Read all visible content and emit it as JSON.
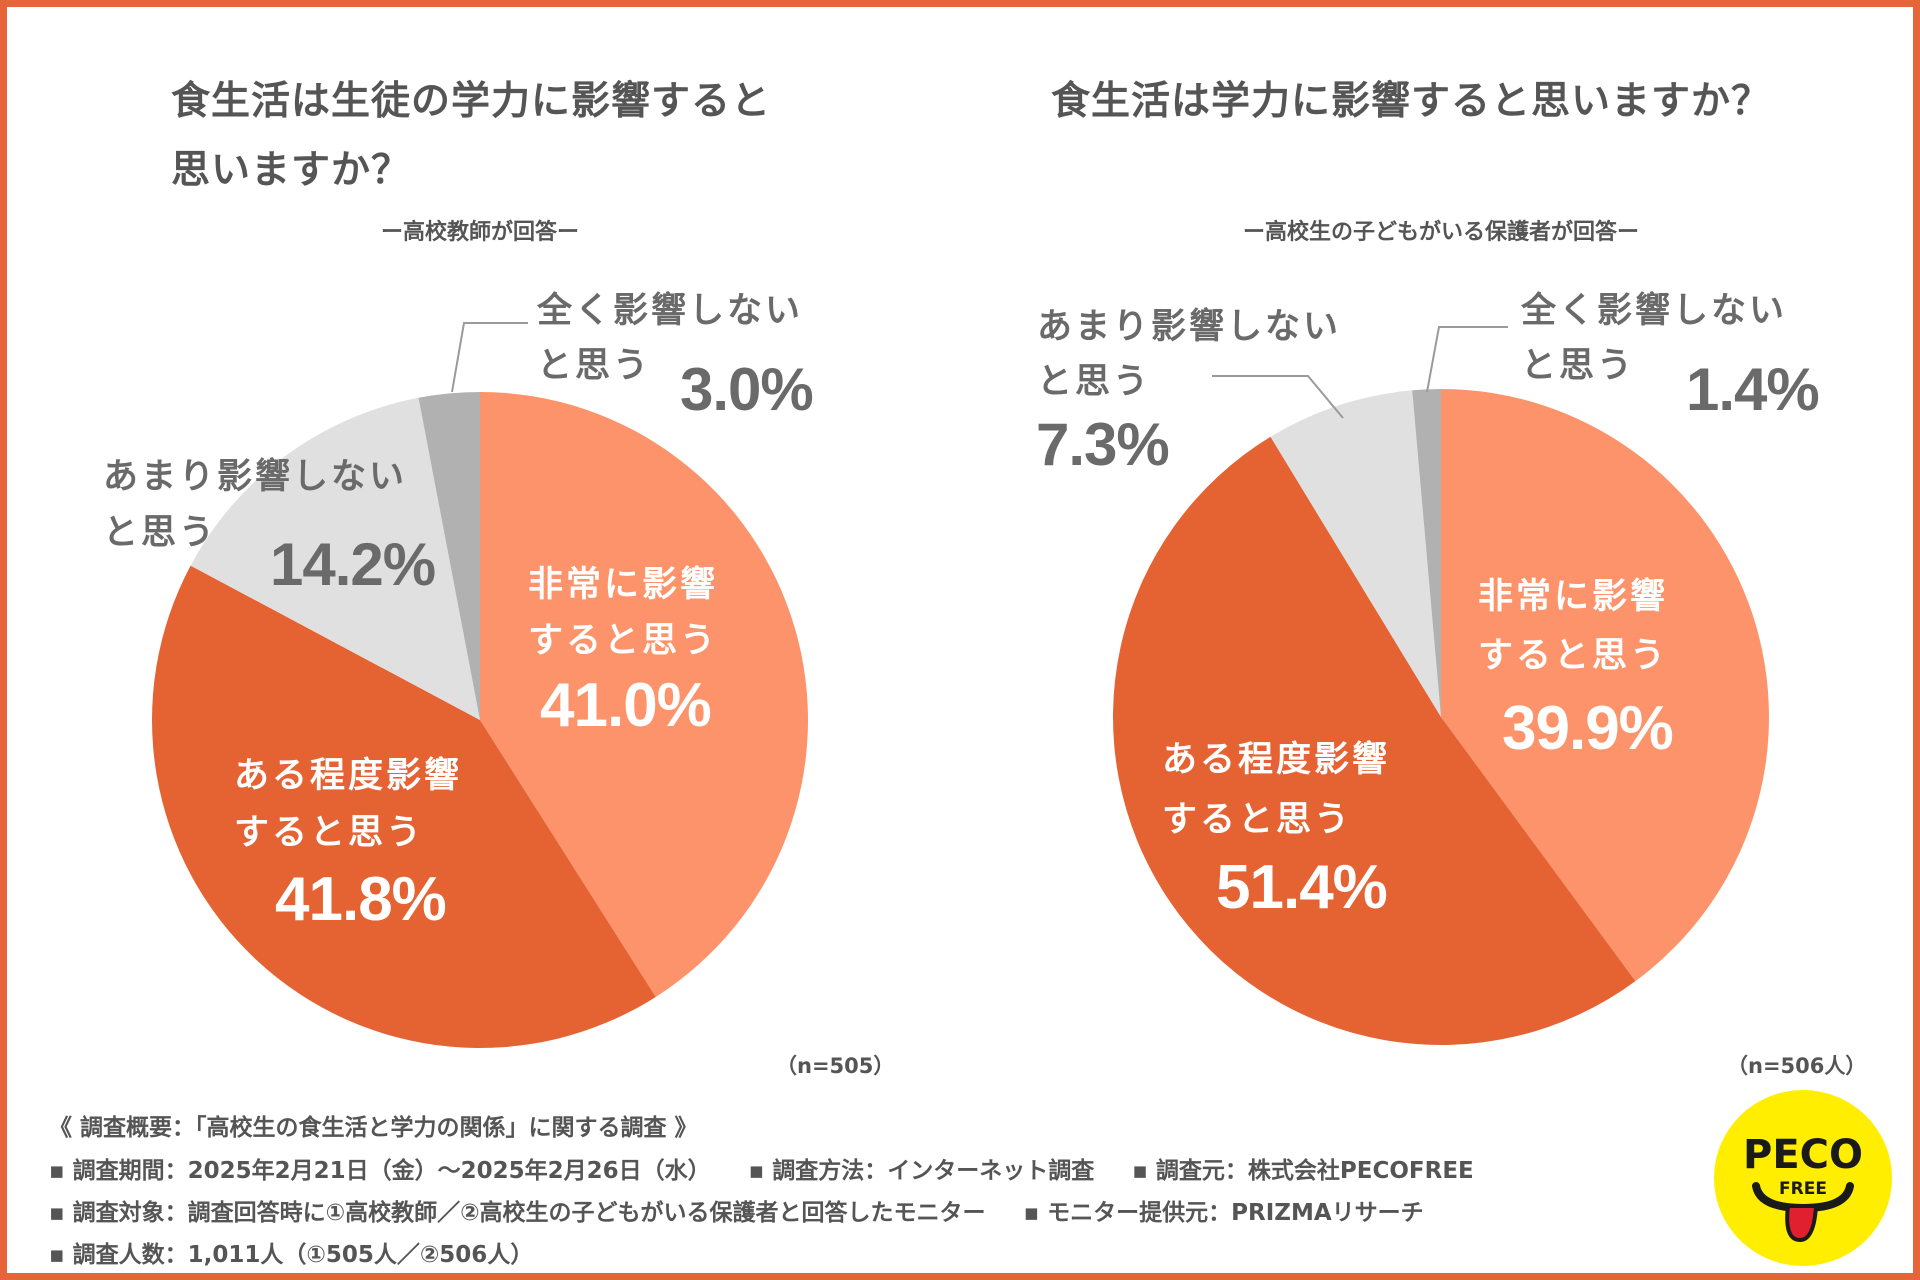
{
  "colors": {
    "border": "#E5643A",
    "very_much": "#FD936A",
    "somewhat": "#E56333",
    "not_much": "#E0E0E0",
    "not_at_all": "#B1B1B1",
    "leader": "#9a9a9a",
    "logo_bg": "#FFEE00"
  },
  "chart_data": [
    {
      "type": "pie",
      "title": "食生活は生徒の学力に影響すると思いますか？",
      "title_lines": [
        "食生活は生徒の学力に影響すると",
        "思いますか？"
      ],
      "subtitle": "ー高校教師が回答ー",
      "sample_note": "（n=505）",
      "start_angle_deg": 0,
      "direction": "clockwise",
      "slices": [
        {
          "key": "very_much",
          "label_lines": [
            "非常に影響",
            "すると思う"
          ],
          "value": 41.0,
          "display": "41.0%"
        },
        {
          "key": "somewhat",
          "label_lines": [
            "ある程度影響",
            "すると思う"
          ],
          "value": 41.8,
          "display": "41.8%"
        },
        {
          "key": "not_much",
          "label_lines": [
            "あまり影響しない",
            "と思う"
          ],
          "value": 14.2,
          "display": "14.2%"
        },
        {
          "key": "not_at_all",
          "label_lines": [
            "全く影響しない",
            "と思う"
          ],
          "value": 3.0,
          "display": "3.0%"
        }
      ]
    },
    {
      "type": "pie",
      "title": "食生活は学力に影響すると思いますか？",
      "title_lines": [
        "食生活は学力に影響すると思いますか？"
      ],
      "subtitle": "ー高校生の子どもがいる保護者が回答ー",
      "sample_note": "（n=506人）",
      "start_angle_deg": 0,
      "direction": "clockwise",
      "slices": [
        {
          "key": "very_much",
          "label_lines": [
            "非常に影響",
            "すると思う"
          ],
          "value": 39.9,
          "display": "39.9%"
        },
        {
          "key": "somewhat",
          "label_lines": [
            "ある程度影響",
            "すると思う"
          ],
          "value": 51.4,
          "display": "51.4%"
        },
        {
          "key": "not_much",
          "label_lines": [
            "あまり影響しない",
            "と思う"
          ],
          "value": 7.3,
          "display": "7.3%"
        },
        {
          "key": "not_at_all",
          "label_lines": [
            "全く影響しない",
            "と思う"
          ],
          "value": 1.4,
          "display": "1.4%"
        }
      ]
    }
  ],
  "footer": {
    "heading": "《 調査概要：「高校生の食生活と学力の関係」に関する調査 》",
    "lines": [
      [
        "▪ 調査期間：2025年2月21日（金）～2025年2月26日（水）",
        "▪ 調査方法：インターネット調査",
        "▪ 調査元：株式会社PECOFREE"
      ],
      [
        "▪ 調査対象：調査回答時に①高校教師／②高校生の子どもがいる保護者と回答したモニター",
        "▪ モニター提供元：PRIZMAリサーチ"
      ],
      [
        "▪ 調査人数：1,011人（①505人／②506人）"
      ]
    ]
  },
  "logo": {
    "top": "PECO",
    "bottom": "FREE"
  }
}
